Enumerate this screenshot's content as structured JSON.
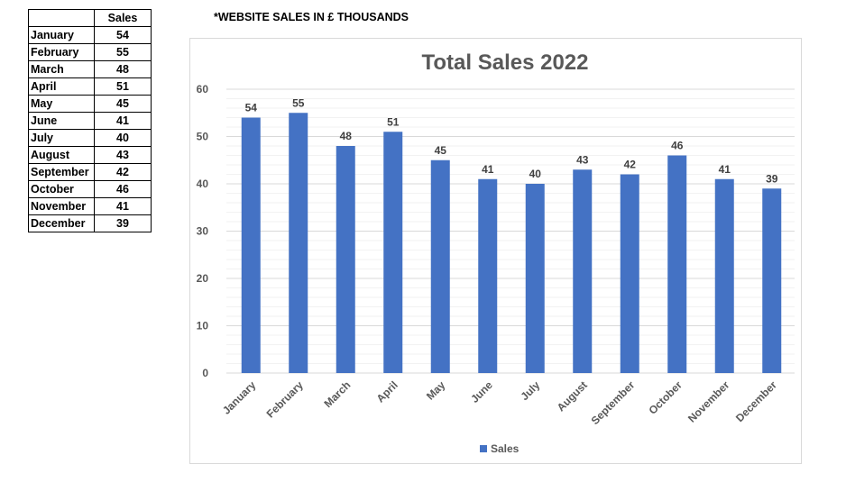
{
  "table": {
    "header": "Sales",
    "rows": [
      {
        "month": "January",
        "value": "54"
      },
      {
        "month": "February",
        "value": "55"
      },
      {
        "month": "March",
        "value": "48"
      },
      {
        "month": "April",
        "value": "51"
      },
      {
        "month": "May",
        "value": "45"
      },
      {
        "month": "June",
        "value": "41"
      },
      {
        "month": "July",
        "value": "40"
      },
      {
        "month": "August",
        "value": "43"
      },
      {
        "month": "September",
        "value": "42"
      },
      {
        "month": "October",
        "value": "46"
      },
      {
        "month": "November",
        "value": "41"
      },
      {
        "month": "December",
        "value": "39"
      }
    ]
  },
  "note": "*WEBSITE SALES IN £ THOUSANDS",
  "chart_data": {
    "type": "bar",
    "title": "Total Sales 2022",
    "categories": [
      "January",
      "February",
      "March",
      "April",
      "May",
      "June",
      "July",
      "August",
      "September",
      "October",
      "November",
      "December"
    ],
    "series": [
      {
        "name": "Sales",
        "values": [
          54,
          55,
          48,
          51,
          45,
          41,
          40,
          43,
          42,
          46,
          41,
          39
        ],
        "color": "#4472c4"
      }
    ],
    "ylim": [
      0,
      60
    ],
    "yticks": [
      0,
      10,
      20,
      30,
      40,
      50,
      60
    ],
    "grid": true,
    "data_labels": true,
    "legend": "bottom"
  }
}
